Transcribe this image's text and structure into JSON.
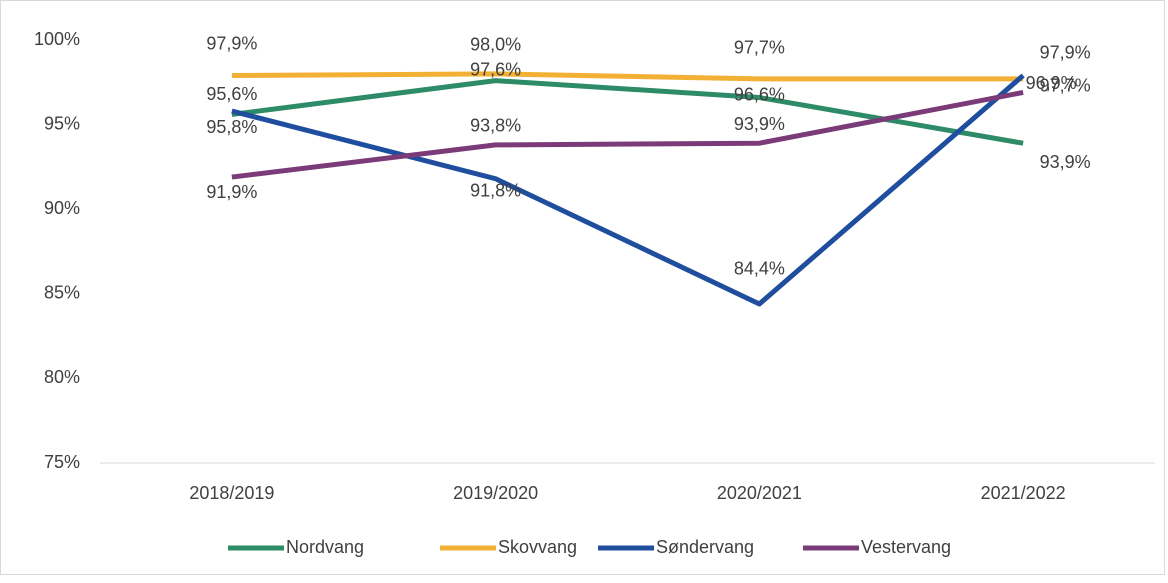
{
  "chart_data": {
    "type": "line",
    "categories": [
      "2018/2019",
      "2019/2020",
      "2020/2021",
      "2021/2022"
    ],
    "series": [
      {
        "name": "Nordvang",
        "color": "#2e8b67",
        "values": [
          95.6,
          97.6,
          96.6,
          93.9
        ],
        "value_labels": [
          "95,6%",
          "97,6%",
          "96,6%",
          "93,9%"
        ]
      },
      {
        "name": "Skovvang",
        "color": "#f2b134",
        "values": [
          97.9,
          98.0,
          97.7,
          97.7
        ],
        "value_labels": [
          "97,9%",
          "98,0%",
          "97,7%",
          "97,7%"
        ]
      },
      {
        "name": "Søndervang",
        "color": "#1f4e9f",
        "values": [
          95.8,
          91.8,
          84.4,
          97.9
        ],
        "value_labels": [
          "95,8%",
          "91,8%",
          "84,4%",
          "97,9%"
        ]
      },
      {
        "name": "Vestervang",
        "color": "#7a3b78",
        "values": [
          91.9,
          93.8,
          93.9,
          96.9
        ],
        "value_labels": [
          "91,9%",
          "93,8%",
          "93,9%",
          "96,9%"
        ]
      }
    ],
    "ylim": [
      75,
      100
    ],
    "yticks": [
      {
        "value": 75,
        "label": "75%"
      },
      {
        "value": 80,
        "label": "80%"
      },
      {
        "value": 85,
        "label": "85%"
      },
      {
        "value": 90,
        "label": "90%"
      },
      {
        "value": 95,
        "label": "95%"
      },
      {
        "value": 100,
        "label": "100%"
      }
    ],
    "grid": false,
    "legend": "bottom"
  }
}
